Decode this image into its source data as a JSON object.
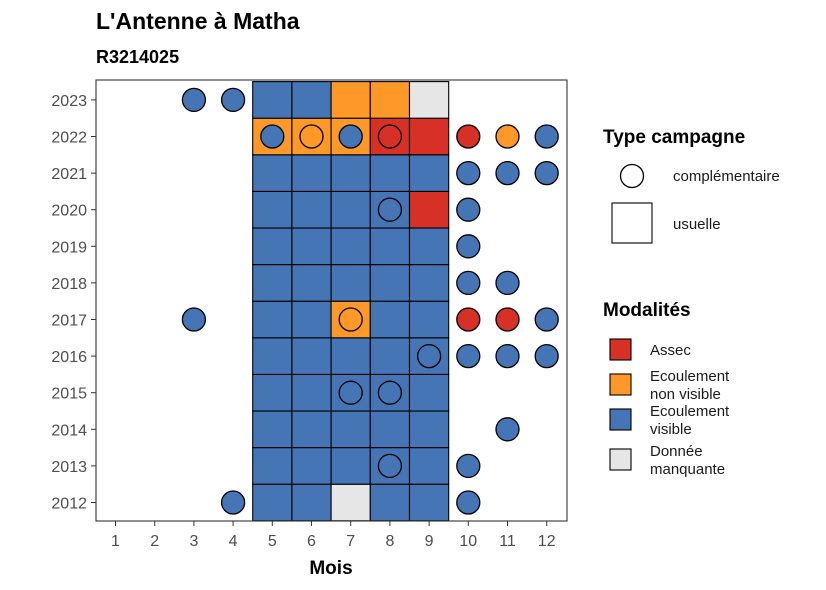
{
  "chart_data": {
    "type": "heatmap",
    "title": "L'Antenne à Matha",
    "subtitle": "R3214025",
    "xlabel": "Mois",
    "ylabel": "",
    "x_ticks": [
      1,
      2,
      3,
      4,
      5,
      6,
      7,
      8,
      9,
      10,
      11,
      12
    ],
    "y_ticks": [
      2012,
      2013,
      2014,
      2015,
      2016,
      2017,
      2018,
      2019,
      2020,
      2021,
      2022,
      2023
    ],
    "grid": false,
    "legend_position": "right",
    "colors": {
      "Assec": "#d73027",
      "Ecoulement non visible": "#fe9929",
      "Ecoulement visible": "#4575b4",
      "Donnée manquante": "#e6e6e6"
    },
    "usuelle": [
      {
        "year": 2012,
        "months": {
          "5": "Ecoulement visible",
          "6": "Ecoulement visible",
          "7": "Donnée manquante",
          "8": "Ecoulement visible",
          "9": "Ecoulement visible"
        }
      },
      {
        "year": 2013,
        "months": {
          "5": "Ecoulement visible",
          "6": "Ecoulement visible",
          "7": "Ecoulement visible",
          "8": "Ecoulement visible",
          "9": "Ecoulement visible"
        }
      },
      {
        "year": 2014,
        "months": {
          "5": "Ecoulement visible",
          "6": "Ecoulement visible",
          "7": "Ecoulement visible",
          "8": "Ecoulement visible",
          "9": "Ecoulement visible"
        }
      },
      {
        "year": 2015,
        "months": {
          "5": "Ecoulement visible",
          "6": "Ecoulement visible",
          "7": "Ecoulement visible",
          "8": "Ecoulement visible",
          "9": "Ecoulement visible"
        }
      },
      {
        "year": 2016,
        "months": {
          "5": "Ecoulement visible",
          "6": "Ecoulement visible",
          "7": "Ecoulement visible",
          "8": "Ecoulement visible",
          "9": "Ecoulement visible"
        }
      },
      {
        "year": 2017,
        "months": {
          "5": "Ecoulement visible",
          "6": "Ecoulement visible",
          "7": "Ecoulement non visible",
          "8": "Ecoulement visible",
          "9": "Ecoulement visible"
        }
      },
      {
        "year": 2018,
        "months": {
          "5": "Ecoulement visible",
          "6": "Ecoulement visible",
          "7": "Ecoulement visible",
          "8": "Ecoulement visible",
          "9": "Ecoulement visible"
        }
      },
      {
        "year": 2019,
        "months": {
          "5": "Ecoulement visible",
          "6": "Ecoulement visible",
          "7": "Ecoulement visible",
          "8": "Ecoulement visible",
          "9": "Ecoulement visible"
        }
      },
      {
        "year": 2020,
        "months": {
          "5": "Ecoulement visible",
          "6": "Ecoulement visible",
          "7": "Ecoulement visible",
          "8": "Ecoulement visible",
          "9": "Assec"
        }
      },
      {
        "year": 2021,
        "months": {
          "5": "Ecoulement visible",
          "6": "Ecoulement visible",
          "7": "Ecoulement visible",
          "8": "Ecoulement visible",
          "9": "Ecoulement visible"
        }
      },
      {
        "year": 2022,
        "months": {
          "5": "Ecoulement non visible",
          "6": "Ecoulement non visible",
          "7": "Ecoulement non visible",
          "8": "Assec",
          "9": "Assec"
        }
      },
      {
        "year": 2023,
        "months": {
          "5": "Ecoulement visible",
          "6": "Ecoulement visible",
          "7": "Ecoulement non visible",
          "8": "Ecoulement non visible",
          "9": "Donnée manquante"
        }
      }
    ],
    "complementaire": [
      {
        "year": 2012,
        "month": 4,
        "value": "Ecoulement visible"
      },
      {
        "year": 2012,
        "month": 10,
        "value": "Ecoulement visible"
      },
      {
        "year": 2013,
        "month": 8,
        "value": "Ecoulement visible"
      },
      {
        "year": 2013,
        "month": 10,
        "value": "Ecoulement visible"
      },
      {
        "year": 2014,
        "month": 11,
        "value": "Ecoulement visible"
      },
      {
        "year": 2015,
        "month": 7,
        "value": "Ecoulement visible"
      },
      {
        "year": 2015,
        "month": 8,
        "value": "Ecoulement visible"
      },
      {
        "year": 2016,
        "month": 9,
        "value": "Ecoulement visible"
      },
      {
        "year": 2016,
        "month": 10,
        "value": "Ecoulement visible"
      },
      {
        "year": 2016,
        "month": 11,
        "value": "Ecoulement visible"
      },
      {
        "year": 2016,
        "month": 12,
        "value": "Ecoulement visible"
      },
      {
        "year": 2017,
        "month": 3,
        "value": "Ecoulement visible"
      },
      {
        "year": 2017,
        "month": 7,
        "value": "Ecoulement non visible"
      },
      {
        "year": 2017,
        "month": 10,
        "value": "Assec"
      },
      {
        "year": 2017,
        "month": 11,
        "value": "Assec"
      },
      {
        "year": 2017,
        "month": 12,
        "value": "Ecoulement visible"
      },
      {
        "year": 2018,
        "month": 10,
        "value": "Ecoulement visible"
      },
      {
        "year": 2018,
        "month": 11,
        "value": "Ecoulement visible"
      },
      {
        "year": 2019,
        "month": 10,
        "value": "Ecoulement visible"
      },
      {
        "year": 2020,
        "month": 8,
        "value": "Ecoulement visible"
      },
      {
        "year": 2020,
        "month": 10,
        "value": "Ecoulement visible"
      },
      {
        "year": 2021,
        "month": 10,
        "value": "Ecoulement visible"
      },
      {
        "year": 2021,
        "month": 11,
        "value": "Ecoulement visible"
      },
      {
        "year": 2021,
        "month": 12,
        "value": "Ecoulement visible"
      },
      {
        "year": 2022,
        "month": 5,
        "value": "Ecoulement visible"
      },
      {
        "year": 2022,
        "month": 6,
        "value": "Ecoulement non visible"
      },
      {
        "year": 2022,
        "month": 7,
        "value": "Ecoulement visible"
      },
      {
        "year": 2022,
        "month": 8,
        "value": "Assec"
      },
      {
        "year": 2022,
        "month": 10,
        "value": "Assec"
      },
      {
        "year": 2022,
        "month": 11,
        "value": "Ecoulement non visible"
      },
      {
        "year": 2022,
        "month": 12,
        "value": "Ecoulement visible"
      },
      {
        "year": 2023,
        "month": 3,
        "value": "Ecoulement visible"
      },
      {
        "year": 2023,
        "month": 4,
        "value": "Ecoulement visible"
      }
    ],
    "legend_type": {
      "title": "Type campagne",
      "items": [
        "complémentaire",
        "usuelle"
      ]
    },
    "legend_modalites": {
      "title": "Modalités",
      "items": [
        {
          "key": "Assec",
          "lines": [
            "Assec"
          ]
        },
        {
          "key": "Ecoulement non visible",
          "lines": [
            "Ecoulement",
            "non visible"
          ]
        },
        {
          "key": "Ecoulement visible",
          "lines": [
            "Ecoulement",
            "visible"
          ]
        },
        {
          "key": "Donnée manquante",
          "lines": [
            "Donnée",
            "manquante"
          ]
        }
      ]
    }
  }
}
